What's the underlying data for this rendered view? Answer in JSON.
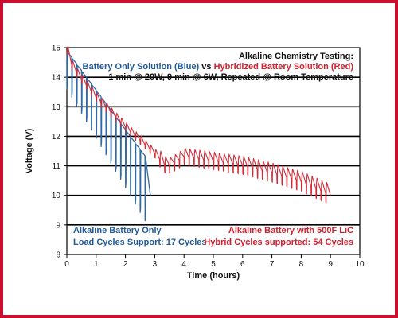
{
  "chart_data": {
    "type": "line",
    "title": "Alkaline Chemistry Testing:",
    "title_lines": [
      {
        "segments": [
          {
            "text": "Alkaline Chemistry Testing:",
            "color": "#111111"
          }
        ]
      },
      {
        "segments": [
          {
            "text": "Battery Only Solution (Blue)",
            "color": "#1f5a9a"
          },
          {
            "text": " vs ",
            "color": "#111111"
          },
          {
            "text": "Hybridized Battery Solution (Red)",
            "color": "#d0202e"
          }
        ]
      },
      {
        "segments": [
          {
            "text": "1 min @ 20W, 9 min @ 6W, Repeated @ Room Temperature",
            "color": "#111111"
          }
        ]
      }
    ],
    "xlabel": "Time (hours)",
    "ylabel": "Voltage (V)",
    "xlim": [
      0,
      10
    ],
    "ylim": [
      8,
      15
    ],
    "x_ticks": [
      "0",
      "1",
      "2",
      "3",
      "4",
      "5",
      "6",
      "7",
      "8",
      "9",
      "10"
    ],
    "y_ticks": [
      "8",
      "9",
      "10",
      "11",
      "12",
      "13",
      "14",
      "15"
    ],
    "grid": "horizontal",
    "series": [
      {
        "color": "#2e6aa8",
        "cycles": 17,
        "start_time": 0.0,
        "cycle_period_hours": 0.1667,
        "pulse_duration_hours": 0.0167,
        "rest_voltage_start": 14.9,
        "rest_voltage_end": 11.1,
        "pulse_drop_start": 1.3,
        "pulse_drop_end": 2.2,
        "end_time": 2.85,
        "end_voltage": 10.0
      },
      {
        "color": "#d42a36",
        "cycles": 54,
        "start_time": 0.0,
        "cycle_period_hours": 0.1667,
        "pulse_duration_hours": 0.0167,
        "rest_profile": [
          [
            0.0,
            14.9
          ],
          [
            0.2,
            14.3
          ],
          [
            1.0,
            13.3
          ],
          [
            2.0,
            12.3
          ],
          [
            3.0,
            11.4
          ],
          [
            3.4,
            10.95
          ],
          [
            3.6,
            11.05
          ],
          [
            4.0,
            11.3
          ],
          [
            5.0,
            11.15
          ],
          [
            6.0,
            11.0
          ],
          [
            7.0,
            10.75
          ],
          [
            8.0,
            10.45
          ],
          [
            9.0,
            10.0
          ]
        ],
        "pulse_rise_start": 0.4,
        "pulse_rise_end": 0.6,
        "pulse_window_start": 3.05,
        "pulse_window_end": 8.95,
        "end_time": 9.0,
        "end_voltage": 10.0
      }
    ],
    "annotations": [
      {
        "id": "battery-only",
        "lines": [
          "Alkaline Battery Only",
          "Load Cycles Support: 17 Cycles"
        ],
        "color": "#1f5a9a",
        "anchor": "bottom-left"
      },
      {
        "id": "hybrid",
        "lines": [
          "Alkaline Battery with 500F LiC",
          "Hybrid Cycles supported: 54 Cycles"
        ],
        "color": "#d0202e",
        "anchor": "bottom-right"
      }
    ]
  }
}
